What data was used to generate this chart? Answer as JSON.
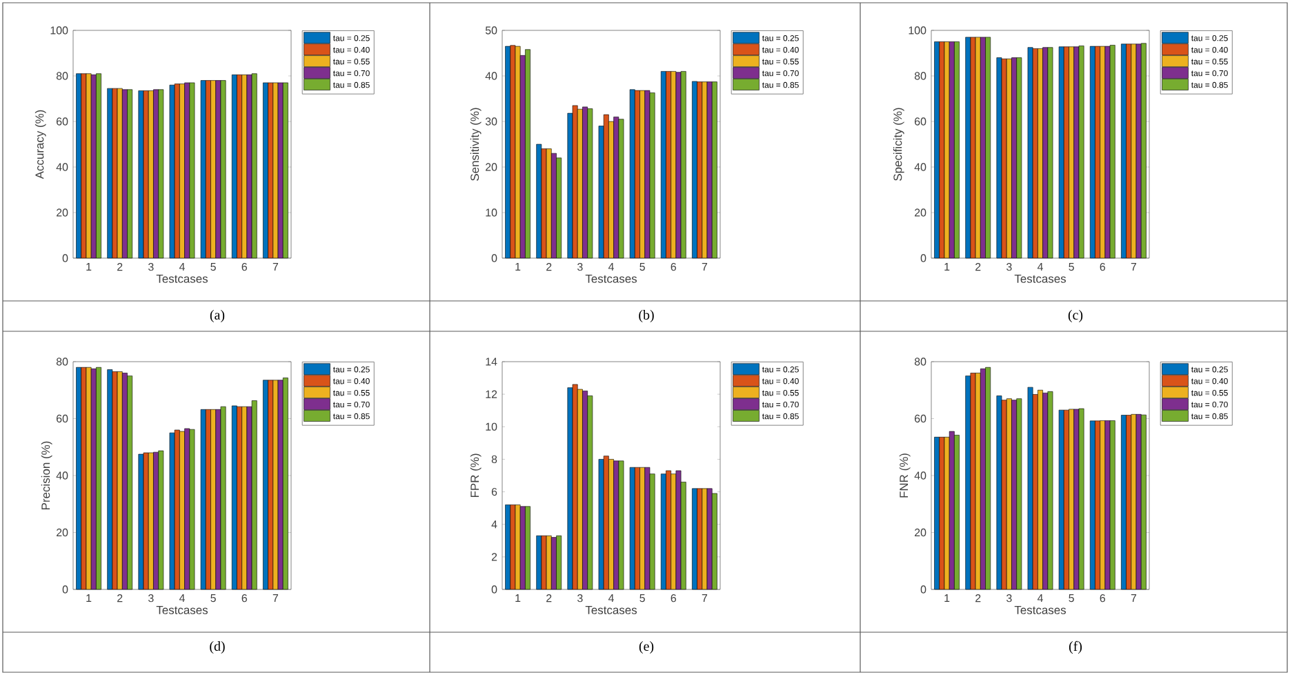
{
  "chart_data": [
    {
      "type": "bar",
      "xlabel": "Testcases",
      "ylabel": "Accuracy (%)",
      "categories": [
        "1",
        "2",
        "3",
        "4",
        "5",
        "6",
        "7"
      ],
      "ylim": [
        0,
        100
      ],
      "yticks": [
        0,
        20,
        40,
        60,
        80,
        100
      ],
      "legend": "top right",
      "annotations": [
        "(a)"
      ],
      "series": [
        {
          "name": "tau = 0.25",
          "color": "#0072bd",
          "values": [
            81,
            74.5,
            73.5,
            76,
            78,
            80.5,
            77
          ]
        },
        {
          "name": "tau = 0.40",
          "color": "#d95319",
          "values": [
            81,
            74.5,
            73.5,
            76.5,
            78,
            80.5,
            77
          ]
        },
        {
          "name": "tau = 0.55",
          "color": "#edb120",
          "values": [
            81,
            74.5,
            73.5,
            76.5,
            78,
            80.5,
            77
          ]
        },
        {
          "name": "tau = 0.70",
          "color": "#7e2f8e",
          "values": [
            80.5,
            74,
            74,
            77,
            78,
            80.5,
            77
          ]
        },
        {
          "name": "tau = 0.85",
          "color": "#77ac30",
          "values": [
            81,
            74,
            74,
            77,
            78,
            81,
            77
          ]
        }
      ]
    },
    {
      "type": "bar",
      "xlabel": "Testcases",
      "ylabel": "Sensitivity (%)",
      "categories": [
        "1",
        "2",
        "3",
        "4",
        "5",
        "6",
        "7"
      ],
      "ylim": [
        0,
        50
      ],
      "yticks": [
        0,
        10,
        20,
        30,
        40,
        50
      ],
      "legend": "top right",
      "annotations": [
        "(b)"
      ],
      "series": [
        {
          "name": "tau = 0.25",
          "color": "#0072bd",
          "values": [
            46.5,
            25,
            31.8,
            29,
            37,
            41,
            38.8
          ]
        },
        {
          "name": "tau = 0.40",
          "color": "#d95319",
          "values": [
            46.7,
            24,
            33.5,
            31.5,
            36.8,
            41,
            38.7
          ]
        },
        {
          "name": "tau = 0.55",
          "color": "#edb120",
          "values": [
            46.5,
            24,
            32.7,
            30,
            36.8,
            41,
            38.7
          ]
        },
        {
          "name": "tau = 0.70",
          "color": "#7e2f8e",
          "values": [
            44.5,
            23,
            33.2,
            31,
            36.8,
            40.8,
            38.7
          ]
        },
        {
          "name": "tau = 0.85",
          "color": "#77ac30",
          "values": [
            45.8,
            22,
            32.8,
            30.5,
            36.3,
            41,
            38.7
          ]
        }
      ]
    },
    {
      "type": "bar",
      "xlabel": "Testcases",
      "ylabel": "Specificity (%)",
      "categories": [
        "1",
        "2",
        "3",
        "4",
        "5",
        "6",
        "7"
      ],
      "ylim": [
        0,
        100
      ],
      "yticks": [
        0,
        20,
        40,
        60,
        80,
        100
      ],
      "legend": "top right",
      "annotations": [
        "(c)"
      ],
      "series": [
        {
          "name": "tau = 0.25",
          "color": "#0072bd",
          "values": [
            95,
            97,
            88,
            92.5,
            92.8,
            93,
            94
          ]
        },
        {
          "name": "tau = 0.40",
          "color": "#d95319",
          "values": [
            95,
            97,
            87.5,
            92,
            92.8,
            93,
            94
          ]
        },
        {
          "name": "tau = 0.55",
          "color": "#edb120",
          "values": [
            95,
            97,
            87.5,
            92,
            92.8,
            93,
            94
          ]
        },
        {
          "name": "tau = 0.70",
          "color": "#7e2f8e",
          "values": [
            95,
            97,
            88,
            92.5,
            92.8,
            93,
            94
          ]
        },
        {
          "name": "tau = 0.85",
          "color": "#77ac30",
          "values": [
            95,
            97,
            88,
            92.5,
            93.2,
            93.5,
            94.3
          ]
        }
      ]
    },
    {
      "type": "bar",
      "xlabel": "Testcases",
      "ylabel": "Precision (%)",
      "categories": [
        "1",
        "2",
        "3",
        "4",
        "5",
        "6",
        "7"
      ],
      "ylim": [
        0,
        80
      ],
      "yticks": [
        0,
        20,
        40,
        60,
        80
      ],
      "legend": "top right",
      "annotations": [
        "(d)"
      ],
      "series": [
        {
          "name": "tau = 0.25",
          "color": "#0072bd",
          "values": [
            78,
            77.2,
            47.5,
            55,
            63.2,
            64.5,
            73.5
          ]
        },
        {
          "name": "tau = 0.40",
          "color": "#d95319",
          "values": [
            78,
            76.5,
            48,
            56,
            63.2,
            64.2,
            73.5
          ]
        },
        {
          "name": "tau = 0.55",
          "color": "#edb120",
          "values": [
            78,
            76.5,
            48,
            55.5,
            63.2,
            64.2,
            73.5
          ]
        },
        {
          "name": "tau = 0.70",
          "color": "#7e2f8e",
          "values": [
            77.5,
            76,
            48.2,
            56.5,
            63.2,
            64.2,
            73.5
          ]
        },
        {
          "name": "tau = 0.85",
          "color": "#77ac30",
          "values": [
            78,
            75,
            48.7,
            56.2,
            64.2,
            66.3,
            74.3
          ]
        }
      ]
    },
    {
      "type": "bar",
      "xlabel": "Testcases",
      "ylabel": "FPR (%)",
      "categories": [
        "1",
        "2",
        "3",
        "4",
        "5",
        "6",
        "7"
      ],
      "ylim": [
        0,
        14
      ],
      "yticks": [
        0,
        2,
        4,
        6,
        8,
        10,
        12,
        14
      ],
      "legend": "top right",
      "annotations": [
        "(e)"
      ],
      "series": [
        {
          "name": "tau = 0.25",
          "color": "#0072bd",
          "values": [
            5.2,
            3.3,
            12.4,
            8,
            7.5,
            7.1,
            6.2
          ]
        },
        {
          "name": "tau = 0.40",
          "color": "#d95319",
          "values": [
            5.2,
            3.3,
            12.6,
            8.2,
            7.5,
            7.3,
            6.2
          ]
        },
        {
          "name": "tau = 0.55",
          "color": "#edb120",
          "values": [
            5.2,
            3.3,
            12.3,
            8,
            7.5,
            7.1,
            6.2
          ]
        },
        {
          "name": "tau = 0.70",
          "color": "#7e2f8e",
          "values": [
            5.1,
            3.2,
            12.2,
            7.9,
            7.5,
            7.3,
            6.2
          ]
        },
        {
          "name": "tau = 0.85",
          "color": "#77ac30",
          "values": [
            5.1,
            3.3,
            11.9,
            7.9,
            7.1,
            6.6,
            5.9
          ]
        }
      ]
    },
    {
      "type": "bar",
      "xlabel": "Testcases",
      "ylabel": "FNR (%)",
      "categories": [
        "1",
        "2",
        "3",
        "4",
        "5",
        "6",
        "7"
      ],
      "ylim": [
        0,
        80
      ],
      "yticks": [
        0,
        20,
        40,
        60,
        80
      ],
      "legend": "top right",
      "annotations": [
        "(f)"
      ],
      "series": [
        {
          "name": "tau = 0.25",
          "color": "#0072bd",
          "values": [
            53.5,
            75,
            68,
            71,
            63,
            59.2,
            61.2
          ]
        },
        {
          "name": "tau = 0.40",
          "color": "#d95319",
          "values": [
            53.5,
            76,
            66.5,
            68.5,
            63,
            59.2,
            61.2
          ]
        },
        {
          "name": "tau = 0.55",
          "color": "#edb120",
          "values": [
            53.5,
            76,
            67,
            70,
            63.3,
            59.3,
            61.5
          ]
        },
        {
          "name": "tau = 0.70",
          "color": "#7e2f8e",
          "values": [
            55.5,
            77.5,
            66.5,
            69,
            63.3,
            59.3,
            61.5
          ]
        },
        {
          "name": "tau = 0.85",
          "color": "#77ac30",
          "values": [
            54.2,
            78,
            67,
            69.5,
            63.5,
            59.3,
            61.3
          ]
        }
      ]
    }
  ]
}
